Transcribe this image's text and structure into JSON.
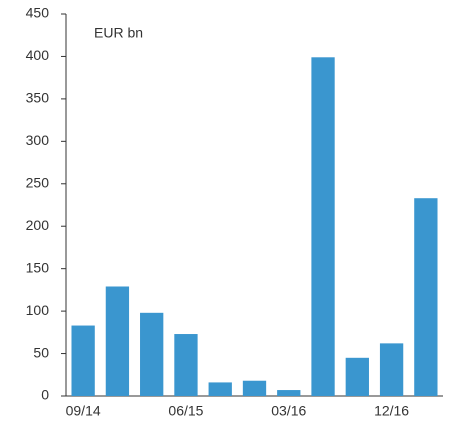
{
  "chart_data": {
    "type": "bar",
    "annotation": "EUR bn",
    "categories": [
      "09/14",
      null,
      null,
      "06/15",
      null,
      null,
      "03/16",
      null,
      null,
      "12/16",
      null
    ],
    "values": [
      83,
      129,
      98,
      73,
      16,
      18,
      7,
      399,
      45,
      62,
      233
    ],
    "color": "#3a96cf",
    "ylim": [
      0,
      450
    ],
    "yticks": [
      0,
      50,
      100,
      150,
      200,
      250,
      300,
      350,
      400,
      450
    ],
    "grid": false
  }
}
